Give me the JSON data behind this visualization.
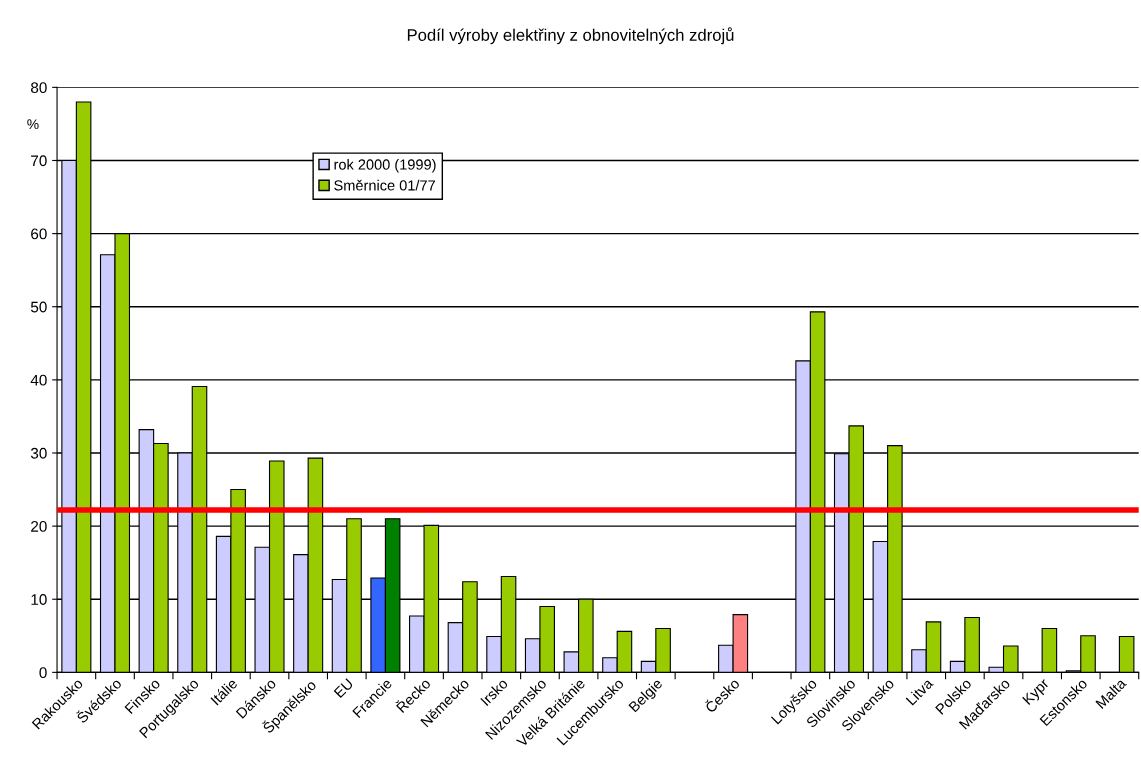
{
  "chart_data": {
    "type": "bar",
    "title": "Podíl výroby elektřiny z obnovitelných zdrojů",
    "ylabel": "%",
    "categories": [
      "Rakousko",
      "Švédsko",
      "Finsko",
      "Portugalsko",
      "Itálie",
      "Dánsko",
      "Španělsko",
      "EU",
      "Francie",
      "Řecko",
      "Německo",
      "Irsko",
      "Nizozemsko",
      "Velká Británie",
      "Lucembursko",
      "Belgie",
      null,
      "Česko",
      null,
      "Lotyšsko",
      "Slovinsko",
      "Slovensko",
      "Litva",
      "Polsko",
      "Maďarsko",
      "Kypr",
      "Estonsko",
      "Malta"
    ],
    "series": [
      {
        "name": "rok 2000 (1999)",
        "color": "#ccccff",
        "colors": [
          "#ccccff",
          "#ccccff",
          "#ccccff",
          "#ccccff",
          "#ccccff",
          "#ccccff",
          "#ccccff",
          "#ccccff",
          "#3366ff",
          "#ccccff",
          "#ccccff",
          "#ccccff",
          "#ccccff",
          "#ccccff",
          "#ccccff",
          "#ccccff",
          "#ccccff",
          "#ccccff",
          "#ccccff",
          "#ccccff",
          "#ccccff",
          "#ccccff",
          "#ccccff",
          "#ccccff",
          "#ccccff",
          "#ccccff",
          "#ccccff",
          "#ccccff"
        ],
        "values": [
          70,
          57.1,
          33.2,
          30,
          18.6,
          17.1,
          16.1,
          12.7,
          12.9,
          7.7,
          6.8,
          4.9,
          4.6,
          2.8,
          2.0,
          1.5,
          null,
          3.7,
          null,
          42.6,
          29.9,
          17.9,
          3.1,
          1.5,
          0.7,
          null,
          0.2,
          null
        ]
      },
      {
        "name": "Směrnice 01/77",
        "color": "#99cc00",
        "colors": [
          "#99cc00",
          "#99cc00",
          "#99cc00",
          "#99cc00",
          "#99cc00",
          "#99cc00",
          "#99cc00",
          "#99cc00",
          "#008000",
          "#99cc00",
          "#99cc00",
          "#99cc00",
          "#99cc00",
          "#99cc00",
          "#99cc00",
          "#99cc00",
          "#99cc00",
          "#ff8080",
          "#99cc00",
          "#99cc00",
          "#99cc00",
          "#99cc00",
          "#99cc00",
          "#99cc00",
          "#99cc00",
          "#99cc00",
          "#99cc00",
          "#99cc00"
        ],
        "values": [
          78,
          60,
          31.3,
          39.1,
          25.0,
          28.9,
          29.3,
          21.0,
          21.0,
          20.1,
          12.4,
          13.1,
          9.0,
          10,
          5.6,
          6.0,
          null,
          7.9,
          null,
          49.3,
          33.7,
          31.0,
          6.9,
          7.5,
          3.6,
          6.0,
          5.0,
          4.9
        ]
      }
    ],
    "ylim": [
      0,
      80
    ],
    "yticks": [
      0,
      10,
      20,
      30,
      40,
      50,
      60,
      70,
      80
    ],
    "grid": "y",
    "legend": "top left",
    "ref_lines": [
      {
        "axis": "y",
        "value": 22.2,
        "color": "#ff0000"
      }
    ]
  }
}
